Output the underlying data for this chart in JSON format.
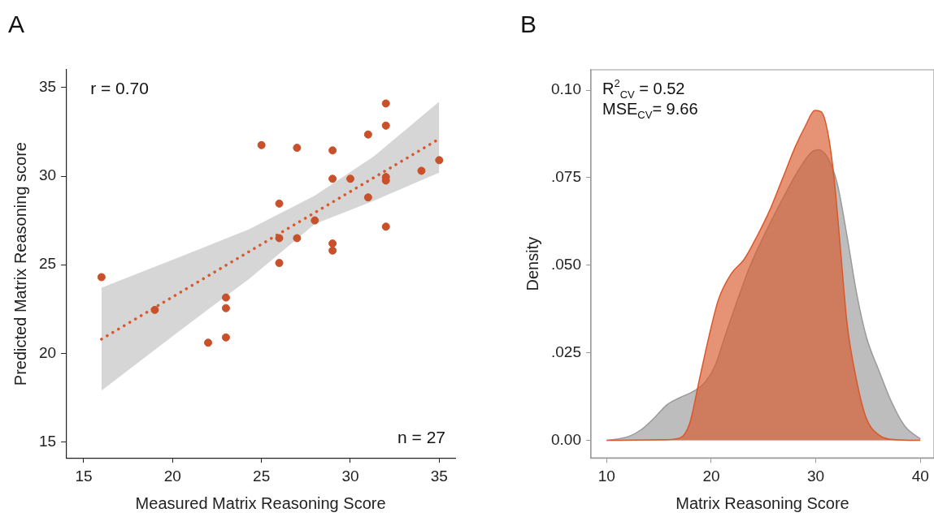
{
  "chart_data": [
    {
      "type": "scatter",
      "title": "A",
      "xlabel": "Measured Matrix Reasoning Score",
      "ylabel": "Predicted Matrix Reasoning score",
      "annotations": [
        "r = 0.70",
        "n = 27"
      ],
      "xlim": [
        14,
        35.9
      ],
      "ylim": [
        14.1,
        36
      ],
      "xticks": [
        15,
        20,
        25,
        30,
        35
      ],
      "yticks": [
        15,
        20,
        25,
        30,
        35
      ],
      "marker": "circle",
      "x": [
        16,
        19,
        22,
        23,
        23,
        23,
        25,
        26,
        26,
        26,
        27,
        27,
        28,
        29,
        29,
        29,
        29,
        30,
        31,
        31,
        32,
        32,
        32,
        32,
        32,
        34,
        35
      ],
      "series": [
        {
          "type": "scatter",
          "color": "#c8502a",
          "values": [
            24.3,
            22.45,
            20.6,
            23.15,
            22.55,
            20.9,
            31.75,
            28.45,
            26.5,
            25.1,
            31.6,
            26.5,
            27.5,
            31.45,
            29.85,
            26.2,
            25.8,
            29.85,
            32.35,
            28.8,
            34.1,
            32.85,
            29.95,
            29.75,
            27.15,
            30.3,
            30.9
          ]
        },
        {
          "type": "line",
          "line_style": "dotted",
          "marker": "none",
          "color": "#d9572b",
          "x": [
            16,
            20.3,
            24.3,
            28,
            31.3,
            35
          ],
          "values": [
            20.8,
            23.36,
            25.74,
            27.94,
            29.9,
            32.1
          ],
          "lower": [
            17.9,
            21.2,
            24.2,
            27.3,
            28.6,
            30.2
          ],
          "upper": [
            23.7,
            25.4,
            27.0,
            28.9,
            31.1,
            34.2
          ]
        }
      ]
    },
    {
      "type": "area",
      "title": "B",
      "xlabel": "Matrix Reasoning Score",
      "ylabel": "Density",
      "annotations": [
        "R$^{2}$$_{CV}$ = 0.52",
        "MSE$_{CV}$= 9.66"
      ],
      "xlim": [
        8.5,
        41.3
      ],
      "ylim": [
        -0.005,
        0.1058
      ],
      "xticks": [
        10,
        20,
        30,
        40
      ],
      "yticks": [
        {
          "value": 0,
          "label": "0.00"
        },
        {
          "value": 0.025,
          "label": ".025"
        },
        {
          "value": 0.05,
          "label": ".050"
        },
        {
          "value": 0.075,
          "label": ".075"
        },
        {
          "value": 0.1,
          "label": "0.10"
        }
      ],
      "marker": "none",
      "series": [
        {
          "color": "#9a9a9a",
          "x": [
            10,
            12.09,
            13.32,
            14.55,
            15.78,
            17.0,
            18.23,
            19.46,
            20.38,
            21.3,
            22.53,
            23.76,
            25.3,
            26.84,
            28.37,
            29.6,
            30.22,
            31.14,
            32.06,
            32.98,
            33.9,
            34.82,
            36.05,
            37.28,
            38.51,
            40
          ],
          "values": [
            0,
            0.0011,
            0.0031,
            0.0064,
            0.0102,
            0.0122,
            0.0139,
            0.0168,
            0.0214,
            0.0296,
            0.0402,
            0.0501,
            0.06,
            0.069,
            0.0773,
            0.0823,
            0.083,
            0.0807,
            0.0732,
            0.0584,
            0.042,
            0.0297,
            0.0198,
            0.0107,
            0.0041,
            0.0004
          ]
        },
        {
          "color": "#d9572b",
          "x": [
            10,
            15.47,
            17.0,
            17.93,
            18.85,
            19.77,
            20.69,
            21.92,
            23.15,
            24.38,
            25.61,
            26.84,
            28.06,
            28.99,
            29.91,
            30.52,
            31.14,
            31.75,
            32.37,
            32.98,
            33.9,
            34.82,
            36.05,
            37.59,
            40
          ],
          "values": [
            0,
            0.0002,
            0.0007,
            0.0048,
            0.0171,
            0.0295,
            0.0402,
            0.0476,
            0.0517,
            0.0583,
            0.0658,
            0.0749,
            0.084,
            0.0897,
            0.0942,
            0.0938,
            0.088,
            0.0748,
            0.0542,
            0.0336,
            0.0171,
            0.0064,
            0.0015,
            0.0002,
            0
          ]
        }
      ]
    }
  ]
}
